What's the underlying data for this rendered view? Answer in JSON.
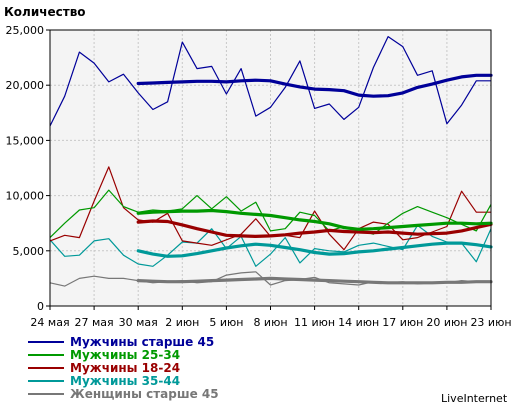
{
  "chart_data": {
    "type": "line",
    "title": "",
    "ylabel": "Количество",
    "xlabel": "",
    "ylim": [
      0,
      25000
    ],
    "yticks": [
      "0",
      "5,000",
      "10,000",
      "15,000",
      "20,000",
      "25,000"
    ],
    "ytick_values": [
      0,
      5000,
      10000,
      15000,
      20000,
      25000
    ],
    "xticks": [
      "24 мая",
      "27 мая",
      "30 мая",
      "2 июн",
      "5 июн",
      "8 июн",
      "11 июн",
      "14 июн",
      "17 июн",
      "20 июн",
      "23 июн"
    ],
    "xtick_days": [
      0,
      3,
      6,
      9,
      12,
      15,
      18,
      21,
      24,
      27,
      30
    ],
    "x_days": [
      0,
      1,
      2,
      3,
      4,
      5,
      6,
      7,
      8,
      9,
      10,
      11,
      12,
      13,
      14,
      15,
      16,
      17,
      18,
      19,
      20,
      21,
      22,
      23,
      24,
      25,
      26,
      27,
      28,
      29,
      30
    ],
    "grid": true,
    "legend_position": "bottom-left",
    "credit": "LiveInternet",
    "series": [
      {
        "name": "Мужчины старше 45",
        "color": "#000099",
        "values": [
          16300,
          19000,
          23000,
          22000,
          20300,
          21000,
          19300,
          17800,
          18500,
          23900,
          21500,
          21700,
          19200,
          21500,
          17200,
          18000,
          19800,
          22200,
          17900,
          18300,
          16900,
          18000,
          21600,
          24400,
          23500,
          20900,
          21300,
          16500,
          18200,
          20400,
          20400
        ],
        "trend": [
          null,
          null,
          null,
          null,
          null,
          null,
          20150,
          20200,
          20250,
          20300,
          20350,
          20350,
          20300,
          20400,
          20450,
          20400,
          20100,
          19850,
          19650,
          19600,
          19500,
          19100,
          19000,
          19050,
          19300,
          19800,
          20100,
          20450,
          20750,
          20900,
          20900
        ]
      },
      {
        "name": "Мужчины 25-34",
        "color": "#009900",
        "values": [
          6200,
          7500,
          8700,
          8900,
          10500,
          9000,
          8500,
          8700,
          8600,
          8800,
          10000,
          8800,
          9900,
          8600,
          9400,
          6800,
          7000,
          8500,
          8200,
          6800,
          7200,
          6900,
          6500,
          7500,
          8400,
          9000,
          8500,
          8000,
          7400,
          6800,
          9200
        ],
        "trend": [
          null,
          null,
          null,
          null,
          null,
          null,
          8400,
          8500,
          8550,
          8600,
          8600,
          8650,
          8550,
          8400,
          8300,
          8200,
          8000,
          7800,
          7650,
          7450,
          7100,
          6950,
          7000,
          7100,
          7200,
          7300,
          7400,
          7500,
          7500,
          7450,
          7500
        ]
      },
      {
        "name": "Мужчины 18-24",
        "color": "#990000",
        "values": [
          5900,
          6400,
          6200,
          9500,
          12600,
          8900,
          7800,
          7600,
          8400,
          5900,
          5700,
          5500,
          6000,
          6500,
          7900,
          6300,
          6400,
          6200,
          8600,
          6500,
          5100,
          7000,
          7600,
          7400,
          6000,
          6200,
          6700,
          7200,
          10400,
          8500,
          8500
        ],
        "trend": [
          null,
          null,
          null,
          null,
          null,
          null,
          7600,
          7700,
          7650,
          7350,
          7000,
          6700,
          6400,
          6350,
          6300,
          6350,
          6450,
          6600,
          6700,
          6850,
          6750,
          6700,
          6650,
          6700,
          6600,
          6500,
          6550,
          6600,
          6800,
          7100,
          7400
        ]
      },
      {
        "name": "Мужчины 35-44",
        "color": "#009999",
        "values": [
          6000,
          4500,
          4600,
          5900,
          6100,
          4600,
          3800,
          3600,
          4600,
          5800,
          5700,
          7000,
          5200,
          6300,
          3600,
          4700,
          6200,
          3900,
          5200,
          5000,
          4900,
          5500,
          5700,
          5400,
          5100,
          7300,
          6300,
          5800,
          5700,
          4000,
          7000
        ],
        "trend": [
          null,
          null,
          null,
          null,
          null,
          null,
          5000,
          4700,
          4500,
          4550,
          4750,
          5000,
          5250,
          5450,
          5600,
          5500,
          5300,
          5100,
          4850,
          4700,
          4750,
          4900,
          5000,
          5150,
          5300,
          5450,
          5600,
          5700,
          5700,
          5550,
          5350
        ]
      },
      {
        "name": "Женщины старше 45",
        "color": "#777777",
        "values": [
          2100,
          1800,
          2500,
          2700,
          2500,
          2500,
          2300,
          2100,
          2200,
          2300,
          2100,
          2200,
          2800,
          3000,
          3100,
          1900,
          2300,
          2400,
          2600,
          2100,
          2000,
          1900,
          2200,
          2100,
          2200,
          2000,
          2100,
          2100,
          2300,
          2200,
          2200
        ],
        "trend": [
          null,
          null,
          null,
          null,
          null,
          null,
          2300,
          2250,
          2200,
          2200,
          2250,
          2300,
          2350,
          2400,
          2450,
          2500,
          2450,
          2400,
          2350,
          2300,
          2250,
          2200,
          2150,
          2100,
          2100,
          2100,
          2100,
          2150,
          2150,
          2200,
          2200
        ]
      }
    ]
  }
}
